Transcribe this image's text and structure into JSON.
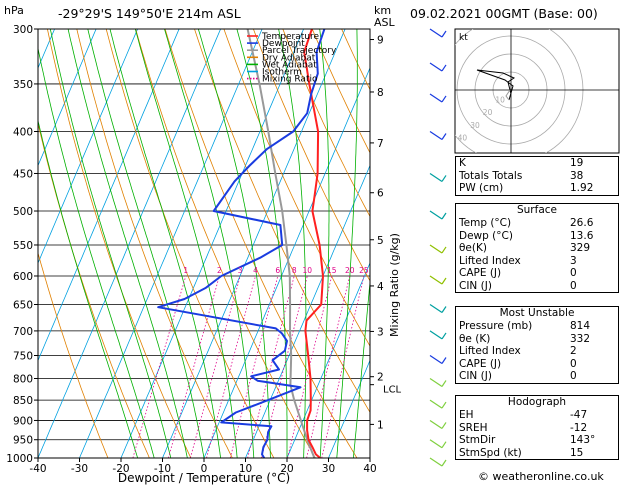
{
  "header": {
    "location": "-29°29'S  149°50'E  214m  ASL",
    "datetime": "09.02.2021  00GMT  (Base: 00)",
    "hpa_label": "hPa",
    "km_label": "km",
    "asl_label": "ASL"
  },
  "footer": "© weatheronline.co.uk",
  "legend": [
    {
      "label": "Temperature",
      "color": "#ff2020",
      "style": "solid"
    },
    {
      "label": "Dewpoint",
      "color": "#1a3ce0",
      "style": "solid"
    },
    {
      "label": "Parcel Trajectory",
      "color": "#999999",
      "style": "solid"
    },
    {
      "label": "Dry Adiabat",
      "color": "#e08000",
      "style": "solid"
    },
    {
      "label": "Wet Adiabat",
      "color": "#00b000",
      "style": "solid"
    },
    {
      "label": "Isotherm",
      "color": "#00a0e0",
      "style": "solid"
    },
    {
      "label": "Mixing Ratio",
      "color": "#e0008a",
      "style": "dotted"
    }
  ],
  "chart_data": {
    "type": "line",
    "xlabel": "Dewpoint / Temperature (°C)",
    "ylabel": "Mixing Ratio (g/kg)",
    "x_ticks": [
      -40,
      -30,
      -20,
      -10,
      0,
      10,
      20,
      30,
      40
    ],
    "xlim": [
      -40,
      40
    ],
    "pressure_levels": [
      300,
      350,
      400,
      450,
      500,
      550,
      600,
      650,
      700,
      750,
      800,
      850,
      900,
      950,
      1000
    ],
    "ylim_hpa": [
      1000,
      300
    ],
    "y_scale": "log",
    "km_ticks": [
      {
        "km": "1",
        "p": 910
      },
      {
        "km": "2",
        "p": 796
      },
      {
        "km": "3",
        "p": 701
      },
      {
        "km": "4",
        "p": 617
      },
      {
        "km": "5",
        "p": 542
      },
      {
        "km": "6",
        "p": 475
      },
      {
        "km": "7",
        "p": 413
      },
      {
        "km": "8",
        "p": 358
      },
      {
        "km": "9",
        "p": 309
      }
    ],
    "lcl": {
      "label": "LCL",
      "p": 814
    },
    "mixing_ratio_labels": [
      "1",
      "2",
      "3",
      "4",
      "6",
      "8",
      "10",
      "15",
      "20",
      "25"
    ],
    "mixing_ratio_values": [
      1,
      2,
      3,
      4,
      6,
      8,
      10,
      15,
      20,
      25
    ],
    "series": [
      {
        "name": "Temperature",
        "color": "#ff2020",
        "points": [
          [
            1000,
            28.0
          ],
          [
            990,
            26.6
          ],
          [
            970,
            25.0
          ],
          [
            950,
            23.3
          ],
          [
            925,
            22.0
          ],
          [
            900,
            21.0
          ],
          [
            875,
            20.8
          ],
          [
            850,
            19.8
          ],
          [
            800,
            17.5
          ],
          [
            750,
            14.6
          ],
          [
            700,
            11.4
          ],
          [
            680,
            10.6
          ],
          [
            650,
            12.5
          ],
          [
            600,
            10.0
          ],
          [
            550,
            6.0
          ],
          [
            500,
            0.8
          ],
          [
            480,
            -0.2
          ],
          [
            450,
            -1.8
          ],
          [
            400,
            -6.0
          ],
          [
            350,
            -13.0
          ],
          [
            320,
            -17.5
          ],
          [
            300,
            -18.0
          ]
        ]
      },
      {
        "name": "Dewpoint",
        "color": "#1a3ce0",
        "points": [
          [
            1000,
            14.5
          ],
          [
            990,
            13.6
          ],
          [
            970,
            13.2
          ],
          [
            950,
            13.4
          ],
          [
            930,
            12.8
          ],
          [
            915,
            13.0
          ],
          [
            905,
            0.5
          ],
          [
            880,
            3.0
          ],
          [
            850,
            9.5
          ],
          [
            820,
            16.0
          ],
          [
            805,
            5.0
          ],
          [
            795,
            3.0
          ],
          [
            780,
            9.0
          ],
          [
            760,
            6.5
          ],
          [
            740,
            8.5
          ],
          [
            720,
            8.0
          ],
          [
            705,
            6.0
          ],
          [
            695,
            4.0
          ],
          [
            655,
            -26.5
          ],
          [
            640,
            -21.0
          ],
          [
            620,
            -17.0
          ],
          [
            600,
            -14.5
          ],
          [
            570,
            -7.0
          ],
          [
            550,
            -3.0
          ],
          [
            520,
            -5.5
          ],
          [
            500,
            -23.0
          ],
          [
            460,
            -21.0
          ],
          [
            440,
            -19.0
          ],
          [
            420,
            -16.5
          ],
          [
            400,
            -12.0
          ],
          [
            380,
            -10.5
          ],
          [
            360,
            -11.5
          ],
          [
            340,
            -12.0
          ],
          [
            320,
            -14.5
          ],
          [
            300,
            -15.0
          ]
        ]
      },
      {
        "name": "Parcel Trajectory",
        "color": "#999999",
        "points": [
          [
            1000,
            26.6
          ],
          [
            950,
            23.0
          ],
          [
            900,
            19.5
          ],
          [
            850,
            15.8
          ],
          [
            814,
            13.3
          ],
          [
            750,
            10.5
          ],
          [
            700,
            7.7
          ],
          [
            650,
            5.0
          ],
          [
            600,
            2.0
          ],
          [
            550,
            -2.0
          ],
          [
            500,
            -6.5
          ],
          [
            450,
            -12.0
          ],
          [
            400,
            -18.0
          ],
          [
            350,
            -25.0
          ],
          [
            300,
            -33.5
          ]
        ]
      }
    ]
  },
  "hodograph": {
    "label": "kt",
    "rings": [
      "10",
      "20",
      "30",
      "40"
    ]
  },
  "indices": {
    "rows": [
      {
        "label": "K",
        "value": "19"
      },
      {
        "label": "Totals Totals",
        "value": "38"
      },
      {
        "label": "PW (cm)",
        "value": "1.92"
      }
    ]
  },
  "surface": {
    "title": "Surface",
    "rows": [
      {
        "label": "Temp (°C)",
        "value": "26.6"
      },
      {
        "label": "Dewp (°C)",
        "value": "13.6"
      },
      {
        "label": "θe(K)",
        "value": "329"
      },
      {
        "label": "Lifted Index",
        "value": "3"
      },
      {
        "label": "CAPE (J)",
        "value": "0"
      },
      {
        "label": "CIN (J)",
        "value": "0"
      }
    ]
  },
  "most_unstable": {
    "title": "Most Unstable",
    "rows": [
      {
        "label": "Pressure (mb)",
        "value": "814"
      },
      {
        "label": "θe (K)",
        "value": "332"
      },
      {
        "label": "Lifted Index",
        "value": "2"
      },
      {
        "label": "CAPE (J)",
        "value": "0"
      },
      {
        "label": "CIN (J)",
        "value": "0"
      }
    ]
  },
  "hodograph_table": {
    "title": "Hodograph",
    "rows": [
      {
        "label": "EH",
        "value": "-47"
      },
      {
        "label": "SREH",
        "value": "-12"
      },
      {
        "label": "StmDir",
        "value": "143°"
      },
      {
        "label": "StmSpd (kt)",
        "value": "15"
      }
    ]
  }
}
